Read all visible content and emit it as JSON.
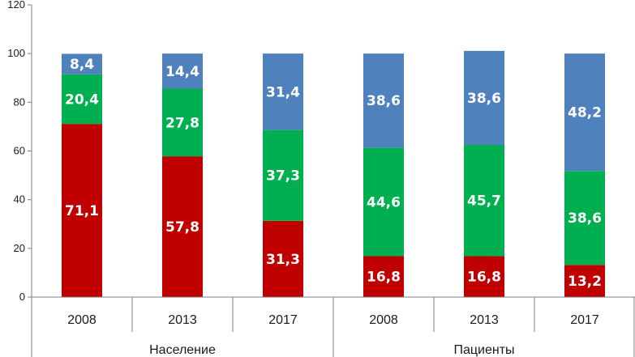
{
  "chart_data": {
    "type": "bar",
    "stacked": true,
    "ylim": [
      0,
      120
    ],
    "yticks": [
      "0",
      "20",
      "40",
      "60",
      "80",
      "100",
      "120"
    ],
    "grid": false,
    "groups": [
      {
        "label": "Население",
        "categories": [
          "2008",
          "2013",
          "2017"
        ]
      },
      {
        "label": "Пациенты",
        "categories": [
          "2008",
          "2013",
          "2017"
        ]
      }
    ],
    "categories": [
      "2008",
      "2013",
      "2017",
      "2008",
      "2013",
      "2017"
    ],
    "colors": [
      "#c00000",
      "#00b050",
      "#4f81bd"
    ],
    "series": [
      {
        "values": [
          71.1,
          57.8,
          31.3,
          16.8,
          16.8,
          13.2
        ],
        "labels": [
          "71,1",
          "57,8",
          "31,3",
          "16,8",
          "16,8",
          "13,2"
        ]
      },
      {
        "values": [
          20.4,
          27.8,
          37.3,
          44.6,
          45.7,
          38.6
        ],
        "labels": [
          "20,4",
          "27,8",
          "37,3",
          "44,6",
          "45,7",
          "38,6"
        ]
      },
      {
        "values": [
          8.4,
          14.4,
          31.4,
          38.6,
          38.6,
          48.2
        ],
        "labels": [
          "8,4",
          "14,4",
          "31,4",
          "38,6",
          "38,6",
          "48,2"
        ]
      }
    ]
  }
}
